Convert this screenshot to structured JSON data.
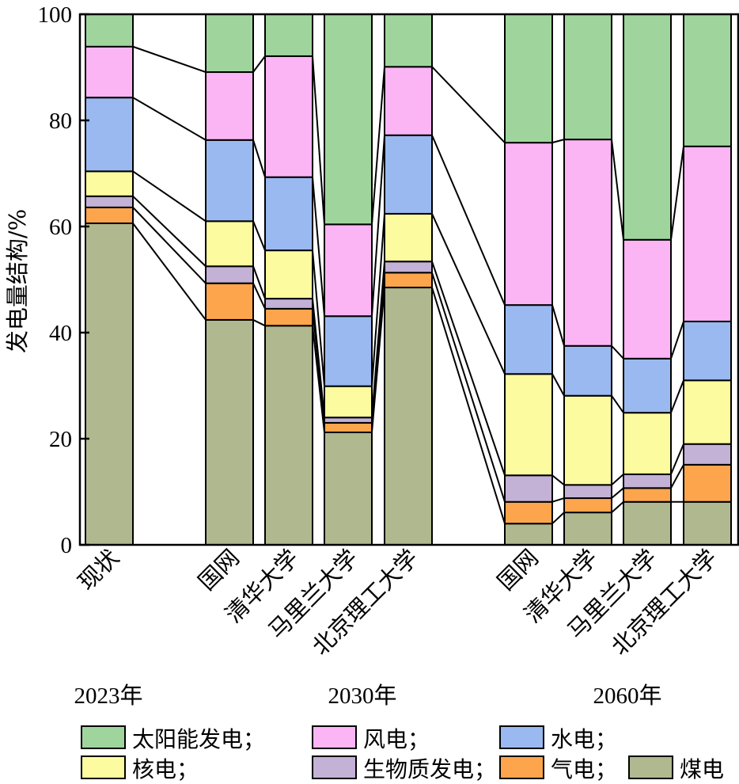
{
  "chart_data": {
    "type": "bar",
    "stacked": true,
    "title": "",
    "xlabel": "",
    "ylabel": "发电量结构/%",
    "ylim": [
      0,
      100
    ],
    "yticks": [
      0,
      20,
      40,
      60,
      80,
      100
    ],
    "grid": false,
    "connector_lines": true,
    "legend_position": "bottom",
    "categories": [
      "现状",
      "国网",
      "清华大学",
      "马里兰大学",
      "北京理工大学",
      "国网",
      "清华大学",
      "马里兰大学",
      "北京理工大学"
    ],
    "groups": [
      {
        "label": "2023年",
        "members": [
          0
        ]
      },
      {
        "label": "2030年",
        "members": [
          1,
          2,
          3,
          4
        ]
      },
      {
        "label": "2060年",
        "members": [
          5,
          6,
          7,
          8
        ]
      }
    ],
    "series": [
      {
        "name": "煤电",
        "legend_label": "煤电",
        "color": "#b0b890",
        "values": [
          60.6,
          42.4,
          41.3,
          21.2,
          48.5,
          4.0,
          6.1,
          8.1,
          8.1
        ]
      },
      {
        "name": "气电",
        "legend_label": "气电；",
        "color": "#fca54d",
        "values": [
          3.0,
          6.9,
          3.2,
          1.8,
          2.8,
          4.1,
          2.7,
          2.6,
          7.0
        ]
      },
      {
        "name": "生物质发电",
        "legend_label": "生物质发电；",
        "color": "#c3b1d6",
        "values": [
          2.1,
          3.2,
          1.9,
          1.0,
          2.1,
          5.0,
          2.5,
          2.6,
          3.9
        ]
      },
      {
        "name": "核电",
        "legend_label": "核电；",
        "color": "#fdfb9f",
        "values": [
          4.7,
          8.5,
          9.1,
          5.9,
          9.0,
          19.1,
          16.8,
          11.6,
          12.0
        ]
      },
      {
        "name": "水电",
        "legend_label": "水电；",
        "color": "#9ab9f0",
        "values": [
          13.9,
          15.3,
          13.8,
          13.2,
          14.8,
          13.0,
          9.4,
          10.2,
          11.1
        ]
      },
      {
        "name": "风电",
        "legend_label": "风电；",
        "color": "#fbb5f4",
        "values": [
          9.6,
          12.8,
          22.8,
          17.3,
          12.9,
          30.6,
          38.9,
          22.4,
          33.0
        ]
      },
      {
        "name": "太阳能发电",
        "legend_label": "太阳能发电；",
        "color": "#9fd59d",
        "values": [
          6.1,
          10.9,
          7.9,
          39.6,
          9.9,
          24.2,
          23.6,
          42.5,
          24.9
        ]
      }
    ],
    "legend_order": [
      "太阳能发电",
      "风电",
      "水电",
      "核电",
      "生物质发电",
      "气电",
      "煤电"
    ]
  }
}
